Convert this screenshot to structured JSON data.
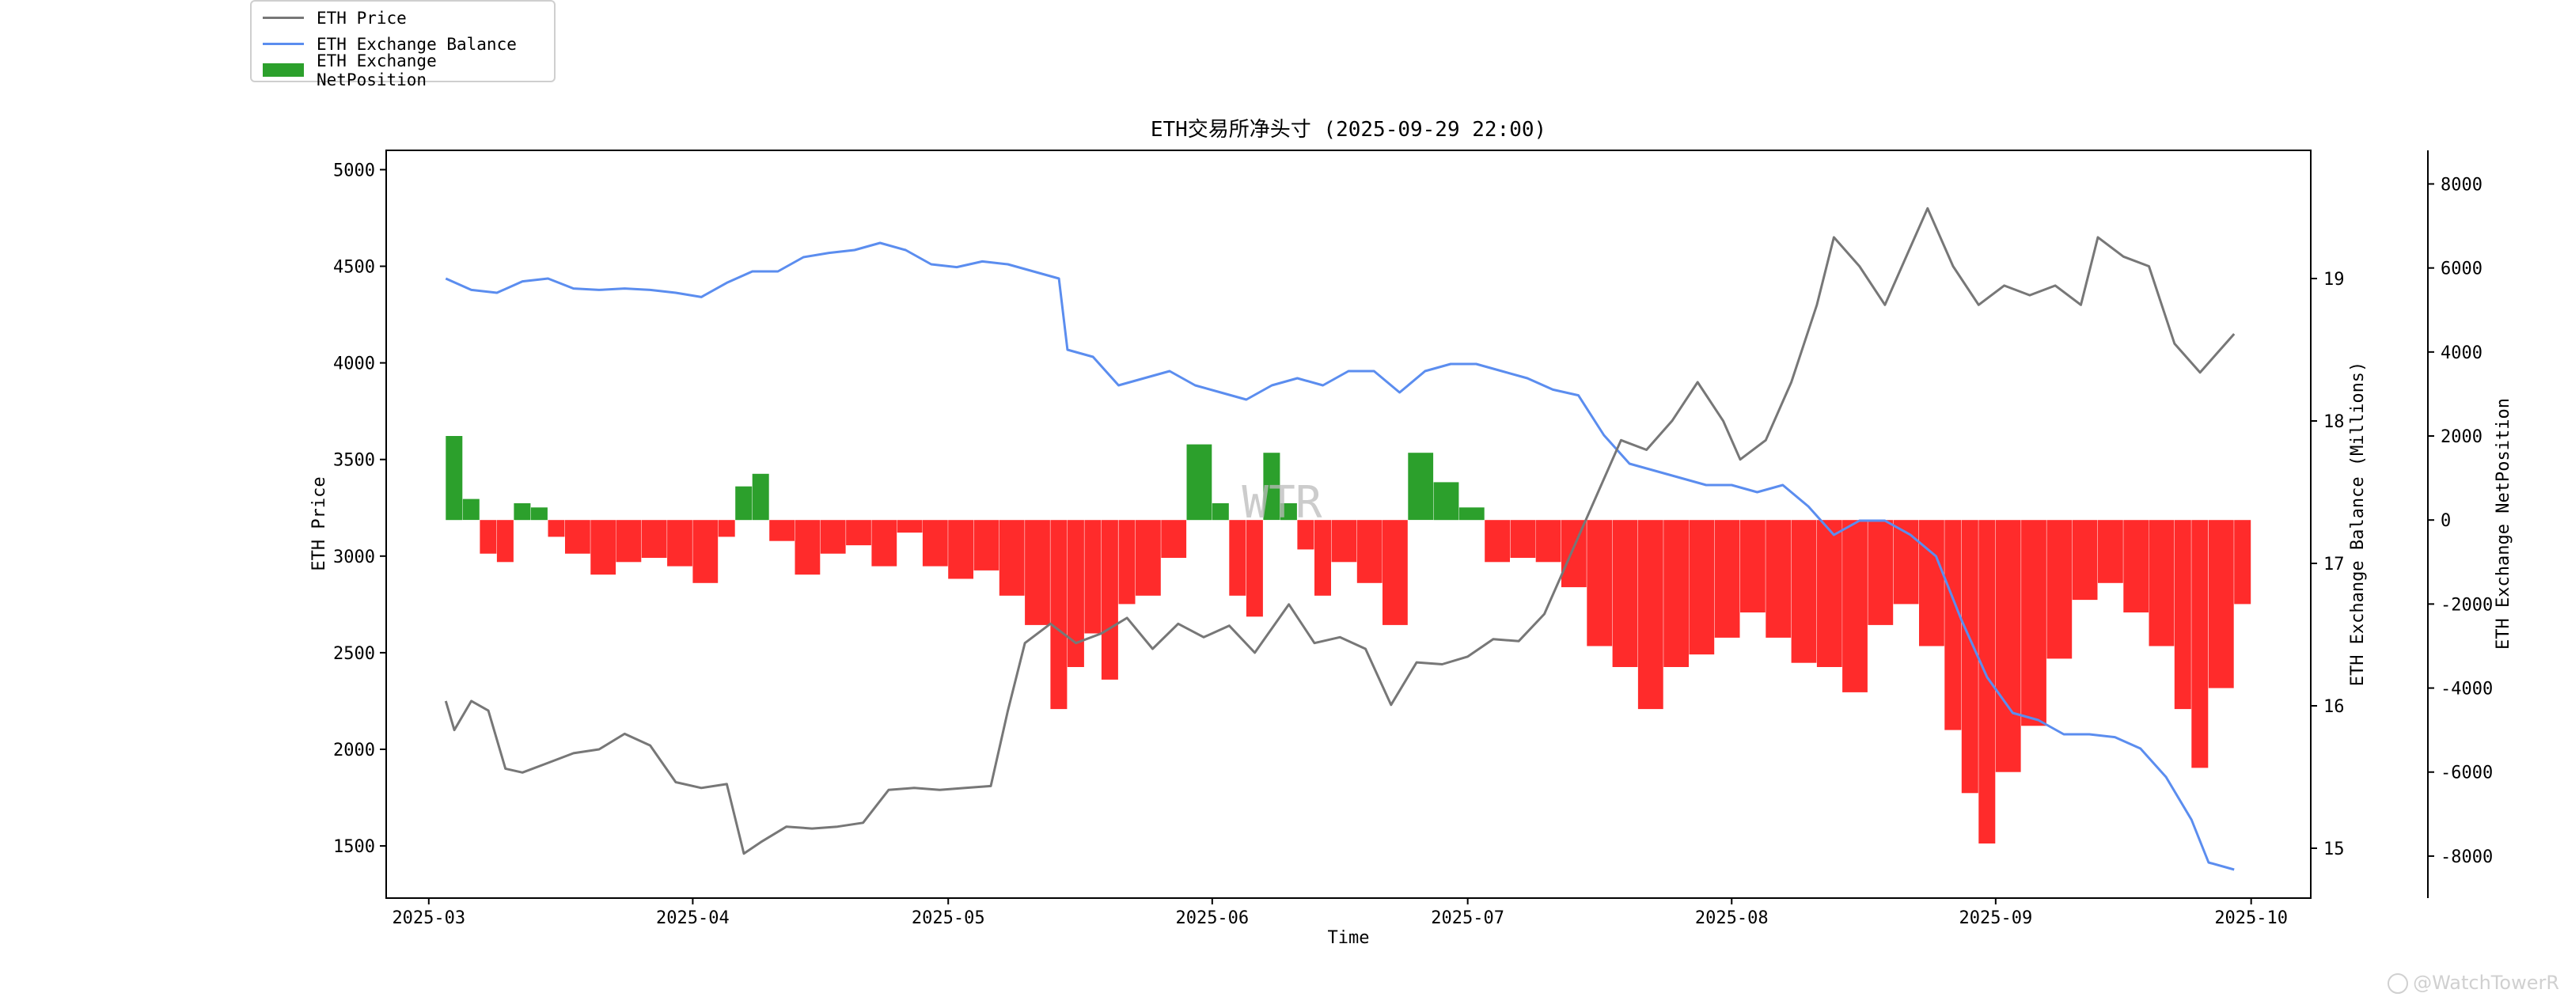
{
  "chart_data": {
    "type": "line",
    "title": "ETH交易所净头寸 (2025-09-29 22:00)",
    "xlabel": "Time",
    "x_ticks": [
      "2025-03",
      "2025-04",
      "2025-05",
      "2025-06",
      "2025-07",
      "2025-08",
      "2025-09",
      "2025-10"
    ],
    "x_range": [
      "2025-02-24",
      "2025-10-08"
    ],
    "legend_position": "top-left",
    "watermark": "WTR",
    "credit": "@WatchTowerR",
    "axes": {
      "left": {
        "label": "ETH Price",
        "range": [
          1230,
          5100
        ],
        "ticks": [
          1500,
          2000,
          2500,
          3000,
          3500,
          4000,
          4500,
          5000
        ]
      },
      "right1": {
        "label": "ETH Exchange Balance (Millions)",
        "range": [
          14.65,
          19.9
        ],
        "ticks": [
          15,
          16,
          17,
          18,
          19
        ]
      },
      "right2": {
        "label": "ETH Exchange NetPosition",
        "range": [
          -9000,
          8800
        ],
        "ticks": [
          -8000,
          -6000,
          -4000,
          -2000,
          0,
          2000,
          4000,
          6000,
          8000
        ]
      }
    },
    "series": [
      {
        "name": "ETH Price",
        "color": "#777777",
        "axis": "left",
        "x": [
          "2025-03-03",
          "2025-03-04",
          "2025-03-06",
          "2025-03-08",
          "2025-03-10",
          "2025-03-12",
          "2025-03-15",
          "2025-03-18",
          "2025-03-21",
          "2025-03-24",
          "2025-03-27",
          "2025-03-30",
          "2025-04-02",
          "2025-04-05",
          "2025-04-07",
          "2025-04-09",
          "2025-04-12",
          "2025-04-15",
          "2025-04-18",
          "2025-04-21",
          "2025-04-24",
          "2025-04-27",
          "2025-04-30",
          "2025-05-03",
          "2025-05-06",
          "2025-05-08",
          "2025-05-10",
          "2025-05-13",
          "2025-05-16",
          "2025-05-19",
          "2025-05-22",
          "2025-05-25",
          "2025-05-28",
          "2025-05-31",
          "2025-06-03",
          "2025-06-06",
          "2025-06-10",
          "2025-06-13",
          "2025-06-16",
          "2025-06-19",
          "2025-06-22",
          "2025-06-25",
          "2025-06-28",
          "2025-07-01",
          "2025-07-04",
          "2025-07-07",
          "2025-07-10",
          "2025-07-13",
          "2025-07-16",
          "2025-07-19",
          "2025-07-22",
          "2025-07-25",
          "2025-07-28",
          "2025-07-31",
          "2025-08-02",
          "2025-08-05",
          "2025-08-08",
          "2025-08-11",
          "2025-08-13",
          "2025-08-16",
          "2025-08-19",
          "2025-08-22",
          "2025-08-24",
          "2025-08-27",
          "2025-08-30",
          "2025-09-02",
          "2025-09-05",
          "2025-09-08",
          "2025-09-11",
          "2025-09-13",
          "2025-09-16",
          "2025-09-19",
          "2025-09-22",
          "2025-09-25",
          "2025-09-27",
          "2025-09-29"
        ],
        "values": [
          2250,
          2100,
          2250,
          2200,
          1900,
          1880,
          1930,
          1980,
          2000,
          2080,
          2020,
          1830,
          1800,
          1820,
          1460,
          1520,
          1600,
          1590,
          1600,
          1620,
          1790,
          1800,
          1790,
          1800,
          1810,
          2200,
          2550,
          2650,
          2550,
          2600,
          2680,
          2520,
          2650,
          2580,
          2640,
          2500,
          2750,
          2550,
          2580,
          2520,
          2230,
          2450,
          2440,
          2480,
          2570,
          2560,
          2700,
          3000,
          3300,
          3600,
          3550,
          3700,
          3900,
          3700,
          3500,
          3600,
          3900,
          4300,
          4650,
          4500,
          4300,
          4600,
          4800,
          4500,
          4300,
          4400,
          4350,
          4400,
          4300,
          4650,
          4550,
          4500,
          4100,
          3950,
          4050,
          4150
        ]
      },
      {
        "name": "ETH Exchange Balance",
        "color": "#5b8def",
        "axis": "right1",
        "x": [
          "2025-03-03",
          "2025-03-06",
          "2025-03-09",
          "2025-03-12",
          "2025-03-15",
          "2025-03-18",
          "2025-03-21",
          "2025-03-24",
          "2025-03-27",
          "2025-03-30",
          "2025-04-02",
          "2025-04-05",
          "2025-04-08",
          "2025-04-11",
          "2025-04-14",
          "2025-04-17",
          "2025-04-20",
          "2025-04-23",
          "2025-04-26",
          "2025-04-29",
          "2025-05-02",
          "2025-05-05",
          "2025-05-08",
          "2025-05-11",
          "2025-05-14",
          "2025-05-15",
          "2025-05-18",
          "2025-05-21",
          "2025-05-24",
          "2025-05-27",
          "2025-05-30",
          "2025-06-02",
          "2025-06-05",
          "2025-06-08",
          "2025-06-11",
          "2025-06-14",
          "2025-06-17",
          "2025-06-20",
          "2025-06-23",
          "2025-06-26",
          "2025-06-29",
          "2025-07-02",
          "2025-07-05",
          "2025-07-08",
          "2025-07-11",
          "2025-07-14",
          "2025-07-17",
          "2025-07-20",
          "2025-07-23",
          "2025-07-26",
          "2025-07-29",
          "2025-08-01",
          "2025-08-04",
          "2025-08-07",
          "2025-08-10",
          "2025-08-13",
          "2025-08-16",
          "2025-08-19",
          "2025-08-22",
          "2025-08-25",
          "2025-08-28",
          "2025-08-31",
          "2025-09-03",
          "2025-09-06",
          "2025-09-09",
          "2025-09-12",
          "2025-09-15",
          "2025-09-18",
          "2025-09-21",
          "2025-09-24",
          "2025-09-26",
          "2025-09-29"
        ],
        "values": [
          19.0,
          18.92,
          18.9,
          18.98,
          19.0,
          18.93,
          18.92,
          18.93,
          18.92,
          18.9,
          18.87,
          18.97,
          19.05,
          19.05,
          19.15,
          19.18,
          19.2,
          19.25,
          19.2,
          19.1,
          19.08,
          19.12,
          19.1,
          19.05,
          19.0,
          18.5,
          18.45,
          18.25,
          18.3,
          18.35,
          18.25,
          18.2,
          18.15,
          18.25,
          18.3,
          18.25,
          18.35,
          18.35,
          18.2,
          18.35,
          18.4,
          18.4,
          18.35,
          18.3,
          18.22,
          18.18,
          17.9,
          17.7,
          17.65,
          17.6,
          17.55,
          17.55,
          17.5,
          17.55,
          17.4,
          17.2,
          17.3,
          17.3,
          17.2,
          17.05,
          16.6,
          16.2,
          15.95,
          15.9,
          15.8,
          15.8,
          15.78,
          15.7,
          15.5,
          15.2,
          14.9,
          14.85
        ]
      },
      {
        "name": "ETH Exchange NetPosition",
        "color_positive": "#2ca02c",
        "color_negative": "#ff2b2b",
        "axis": "right2",
        "type": "bar",
        "x": [
          "2025-03-03",
          "2025-03-05",
          "2025-03-07",
          "2025-03-09",
          "2025-03-11",
          "2025-03-13",
          "2025-03-15",
          "2025-03-17",
          "2025-03-20",
          "2025-03-23",
          "2025-03-26",
          "2025-03-29",
          "2025-04-01",
          "2025-04-04",
          "2025-04-06",
          "2025-04-08",
          "2025-04-10",
          "2025-04-13",
          "2025-04-16",
          "2025-04-19",
          "2025-04-22",
          "2025-04-25",
          "2025-04-28",
          "2025-05-01",
          "2025-05-04",
          "2025-05-07",
          "2025-05-10",
          "2025-05-13",
          "2025-05-15",
          "2025-05-17",
          "2025-05-19",
          "2025-05-21",
          "2025-05-23",
          "2025-05-26",
          "2025-05-29",
          "2025-06-01",
          "2025-06-03",
          "2025-06-05",
          "2025-06-07",
          "2025-06-09",
          "2025-06-11",
          "2025-06-13",
          "2025-06-15",
          "2025-06-18",
          "2025-06-21",
          "2025-06-24",
          "2025-06-27",
          "2025-06-30",
          "2025-07-03",
          "2025-07-06",
          "2025-07-09",
          "2025-07-12",
          "2025-07-15",
          "2025-07-18",
          "2025-07-21",
          "2025-07-24",
          "2025-07-27",
          "2025-07-30",
          "2025-08-02",
          "2025-08-05",
          "2025-08-08",
          "2025-08-11",
          "2025-08-14",
          "2025-08-17",
          "2025-08-20",
          "2025-08-23",
          "2025-08-26",
          "2025-08-28",
          "2025-08-30",
          "2025-09-01",
          "2025-09-04",
          "2025-09-07",
          "2025-09-10",
          "2025-09-13",
          "2025-09-16",
          "2025-09-19",
          "2025-09-22",
          "2025-09-24",
          "2025-09-26",
          "2025-09-29"
        ],
        "values": [
          2000,
          500,
          -800,
          -1000,
          400,
          300,
          -400,
          -800,
          -1300,
          -1000,
          -900,
          -1100,
          -1500,
          -400,
          800,
          1100,
          -500,
          -1300,
          -800,
          -600,
          -1100,
          -300,
          -1100,
          -1400,
          -1200,
          -1800,
          -2500,
          -4500,
          -3500,
          -2700,
          -3800,
          -2000,
          -1800,
          -900,
          1800,
          400,
          -1800,
          -2300,
          1600,
          400,
          -700,
          -1800,
          -1000,
          -1500,
          -2500,
          1600,
          900,
          300,
          -1000,
          -900,
          -1000,
          -1600,
          -3000,
          -3500,
          -4500,
          -3500,
          -3200,
          -2800,
          -2200,
          -2800,
          -3400,
          -3500,
          -4100,
          -2500,
          -2000,
          -3000,
          -5000,
          -6500,
          -7700,
          -6000,
          -4900,
          -3300,
          -1900,
          -1500,
          -2200,
          -3000,
          -4500,
          -5900,
          -4000,
          -2000
        ]
      }
    ]
  }
}
